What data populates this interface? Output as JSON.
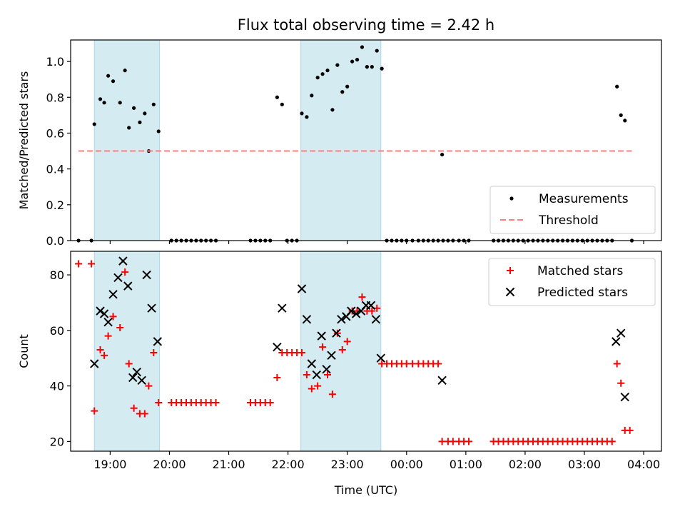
{
  "figure": {
    "title": "Flux total observing time = 2.42 h"
  },
  "chart_data": [
    {
      "type": "scatter",
      "panel": "top",
      "title": "Flux total observing time = 2.42 h",
      "xlabel": "",
      "ylabel": "Matched/Predicted stars",
      "x_ticks": [
        "19:00",
        "20:00",
        "21:00",
        "22:00",
        "23:00",
        "00:00",
        "01:00",
        "02:00",
        "03:00",
        "04:00"
      ],
      "x_tick_labels_visible": false,
      "xlim": [
        "18:20",
        "04:18"
      ],
      "ylim": [
        0.0,
        1.12
      ],
      "y_ticks": [
        0.0,
        0.2,
        0.4,
        0.6,
        0.8,
        1.0
      ],
      "y_tick_labels": [
        "0.0",
        "0.2",
        "0.4",
        "0.6",
        "0.8",
        "1.0"
      ],
      "legend_position": "lower right",
      "highlight_spans": [
        [
          "18:44",
          "19:50"
        ],
        [
          "22:13",
          "23:34"
        ]
      ],
      "highlight_color": "#d3ebf1",
      "series": [
        {
          "name": "Measurements",
          "kind": "points",
          "color": "#000000",
          "points": [
            [
              "18:28",
              0.0
            ],
            [
              "18:41",
              0.0
            ],
            [
              "18:44",
              0.65
            ],
            [
              "18:50",
              0.79
            ],
            [
              "18:54",
              0.77
            ],
            [
              "18:58",
              0.92
            ],
            [
              "19:03",
              0.89
            ],
            [
              "19:10",
              0.77
            ],
            [
              "19:15",
              0.95
            ],
            [
              "19:19",
              0.63
            ],
            [
              "19:24",
              0.74
            ],
            [
              "19:30",
              0.66
            ],
            [
              "19:35",
              0.71
            ],
            [
              "19:39",
              0.5
            ],
            [
              "19:44",
              0.76
            ],
            [
              "19:49",
              0.61
            ],
            [
              "20:02",
              0.0
            ],
            [
              "20:07",
              0.0
            ],
            [
              "20:12",
              0.0
            ],
            [
              "20:17",
              0.0
            ],
            [
              "20:22",
              0.0
            ],
            [
              "20:27",
              0.0
            ],
            [
              "20:32",
              0.0
            ],
            [
              "20:37",
              0.0
            ],
            [
              "20:42",
              0.0
            ],
            [
              "20:47",
              0.0
            ],
            [
              "21:22",
              0.0
            ],
            [
              "21:27",
              0.0
            ],
            [
              "21:32",
              0.0
            ],
            [
              "21:37",
              0.0
            ],
            [
              "21:42",
              0.0
            ],
            [
              "21:49",
              0.8
            ],
            [
              "21:54",
              0.76
            ],
            [
              "21:59",
              0.0
            ],
            [
              "22:04",
              0.0
            ],
            [
              "22:09",
              0.0
            ],
            [
              "22:14",
              0.71
            ],
            [
              "22:19",
              0.69
            ],
            [
              "22:24",
              0.81
            ],
            [
              "22:30",
              0.91
            ],
            [
              "22:35",
              0.93
            ],
            [
              "22:40",
              0.95
            ],
            [
              "22:45",
              0.73
            ],
            [
              "22:50",
              0.98
            ],
            [
              "22:55",
              0.83
            ],
            [
              "23:00",
              0.86
            ],
            [
              "23:05",
              1.0
            ],
            [
              "23:10",
              1.01
            ],
            [
              "23:15",
              1.08
            ],
            [
              "23:20",
              0.97
            ],
            [
              "23:25",
              0.97
            ],
            [
              "23:30",
              1.06
            ],
            [
              "23:35",
              0.96
            ],
            [
              "23:40",
              0.0
            ],
            [
              "23:45",
              0.0
            ],
            [
              "23:50",
              0.0
            ],
            [
              "23:55",
              0.0
            ],
            [
              "00:00",
              0.0
            ],
            [
              "00:06",
              0.0
            ],
            [
              "00:12",
              0.0
            ],
            [
              "00:17",
              0.0
            ],
            [
              "00:22",
              0.0
            ],
            [
              "00:27",
              0.0
            ],
            [
              "00:32",
              0.0
            ],
            [
              "00:37",
              0.0
            ],
            [
              "00:42",
              0.0
            ],
            [
              "00:47",
              0.0
            ],
            [
              "00:53",
              0.0
            ],
            [
              "00:58",
              0.0
            ],
            [
              "01:03",
              0.0
            ],
            [
              "00:36",
              0.48
            ],
            [
              "01:28",
              0.0
            ],
            [
              "01:33",
              0.0
            ],
            [
              "01:38",
              0.0
            ],
            [
              "01:43",
              0.0
            ],
            [
              "01:48",
              0.0
            ],
            [
              "01:53",
              0.0
            ],
            [
              "01:58",
              0.0
            ],
            [
              "02:03",
              0.0
            ],
            [
              "02:08",
              0.0
            ],
            [
              "02:13",
              0.0
            ],
            [
              "02:18",
              0.0
            ],
            [
              "02:23",
              0.0
            ],
            [
              "02:28",
              0.0
            ],
            [
              "02:33",
              0.0
            ],
            [
              "02:38",
              0.0
            ],
            [
              "02:43",
              0.0
            ],
            [
              "02:48",
              0.0
            ],
            [
              "02:53",
              0.0
            ],
            [
              "02:58",
              0.0
            ],
            [
              "03:03",
              0.0
            ],
            [
              "03:08",
              0.0
            ],
            [
              "03:13",
              0.0
            ],
            [
              "03:18",
              0.0
            ],
            [
              "03:23",
              0.0
            ],
            [
              "03:28",
              0.0
            ],
            [
              "03:33",
              0.86
            ],
            [
              "03:37",
              0.7
            ],
            [
              "03:41",
              0.67
            ],
            [
              "03:48",
              0.0
            ]
          ]
        },
        {
          "name": "Threshold",
          "kind": "dashed-line",
          "color": "#ff7f7f",
          "points": [
            [
              "18:28",
              0.5
            ],
            [
              "03:48",
              0.5
            ]
          ]
        }
      ]
    },
    {
      "type": "scatter",
      "panel": "bottom",
      "xlabel": "Time (UTC)",
      "ylabel": "Count",
      "x_ticks": [
        "19:00",
        "20:00",
        "21:00",
        "22:00",
        "23:00",
        "00:00",
        "01:00",
        "02:00",
        "03:00",
        "04:00"
      ],
      "x_tick_labels": [
        "19:00",
        "20:00",
        "21:00",
        "22:00",
        "23:00",
        "00:00",
        "01:00",
        "02:00",
        "03:00",
        "04:00"
      ],
      "xlim": [
        "18:20",
        "04:18"
      ],
      "ylim": [
        16.5,
        88.5
      ],
      "y_ticks": [
        20,
        40,
        60,
        80
      ],
      "y_tick_labels": [
        "20",
        "40",
        "60",
        "80"
      ],
      "legend_position": "upper right",
      "highlight_spans": [
        [
          "18:44",
          "19:50"
        ],
        [
          "22:13",
          "23:34"
        ]
      ],
      "highlight_color": "#d3ebf1",
      "series": [
        {
          "name": "Matched stars",
          "marker": "plus",
          "color": "#ff0000",
          "points": [
            [
              "18:28",
              84
            ],
            [
              "18:41",
              84
            ],
            [
              "18:44",
              31
            ],
            [
              "18:50",
              53
            ],
            [
              "18:54",
              51
            ],
            [
              "18:58",
              58
            ],
            [
              "19:03",
              65
            ],
            [
              "19:10",
              61
            ],
            [
              "19:15",
              81
            ],
            [
              "19:19",
              48
            ],
            [
              "19:24",
              32
            ],
            [
              "19:30",
              30
            ],
            [
              "19:35",
              30
            ],
            [
              "19:39",
              40
            ],
            [
              "19:44",
              52
            ],
            [
              "19:49",
              34
            ],
            [
              "20:02",
              34
            ],
            [
              "20:07",
              34
            ],
            [
              "20:12",
              34
            ],
            [
              "20:17",
              34
            ],
            [
              "20:22",
              34
            ],
            [
              "20:27",
              34
            ],
            [
              "20:32",
              34
            ],
            [
              "20:37",
              34
            ],
            [
              "20:42",
              34
            ],
            [
              "20:47",
              34
            ],
            [
              "21:22",
              34
            ],
            [
              "21:27",
              34
            ],
            [
              "21:32",
              34
            ],
            [
              "21:37",
              34
            ],
            [
              "21:42",
              34
            ],
            [
              "21:49",
              43
            ],
            [
              "21:54",
              52
            ],
            [
              "21:59",
              52
            ],
            [
              "22:04",
              52
            ],
            [
              "22:09",
              52
            ],
            [
              "22:14",
              52
            ],
            [
              "22:19",
              44
            ],
            [
              "22:24",
              39
            ],
            [
              "22:30",
              40
            ],
            [
              "22:35",
              54
            ],
            [
              "22:40",
              44
            ],
            [
              "22:45",
              37
            ],
            [
              "22:50",
              59
            ],
            [
              "22:55",
              53
            ],
            [
              "23:00",
              56
            ],
            [
              "23:05",
              67
            ],
            [
              "23:10",
              67
            ],
            [
              "23:15",
              72
            ],
            [
              "23:20",
              67
            ],
            [
              "23:25",
              67
            ],
            [
              "23:30",
              68
            ],
            [
              "23:35",
              48
            ],
            [
              "23:40",
              48
            ],
            [
              "23:45",
              48
            ],
            [
              "23:50",
              48
            ],
            [
              "23:55",
              48
            ],
            [
              "00:00",
              48
            ],
            [
              "00:06",
              48
            ],
            [
              "00:12",
              48
            ],
            [
              "00:17",
              48
            ],
            [
              "00:22",
              48
            ],
            [
              "00:27",
              48
            ],
            [
              "00:32",
              48
            ],
            [
              "00:36",
              20
            ],
            [
              "00:42",
              20
            ],
            [
              "00:47",
              20
            ],
            [
              "00:53",
              20
            ],
            [
              "00:58",
              20
            ],
            [
              "01:03",
              20
            ],
            [
              "01:28",
              20
            ],
            [
              "01:33",
              20
            ],
            [
              "01:38",
              20
            ],
            [
              "01:43",
              20
            ],
            [
              "01:48",
              20
            ],
            [
              "01:53",
              20
            ],
            [
              "01:58",
              20
            ],
            [
              "02:03",
              20
            ],
            [
              "02:08",
              20
            ],
            [
              "02:13",
              20
            ],
            [
              "02:18",
              20
            ],
            [
              "02:23",
              20
            ],
            [
              "02:28",
              20
            ],
            [
              "02:33",
              20
            ],
            [
              "02:38",
              20
            ],
            [
              "02:43",
              20
            ],
            [
              "02:48",
              20
            ],
            [
              "02:53",
              20
            ],
            [
              "02:58",
              20
            ],
            [
              "03:03",
              20
            ],
            [
              "03:08",
              20
            ],
            [
              "03:13",
              20
            ],
            [
              "03:18",
              20
            ],
            [
              "03:23",
              20
            ],
            [
              "03:28",
              20
            ],
            [
              "03:33",
              48
            ],
            [
              "03:37",
              41
            ],
            [
              "03:41",
              24
            ],
            [
              "03:46",
              24
            ]
          ]
        },
        {
          "name": "Predicted stars",
          "marker": "x",
          "color": "#000000",
          "points": [
            [
              "18:44",
              48
            ],
            [
              "18:50",
              67
            ],
            [
              "18:54",
              66
            ],
            [
              "18:58",
              63
            ],
            [
              "19:03",
              73
            ],
            [
              "19:08",
              79
            ],
            [
              "19:13",
              85
            ],
            [
              "19:18",
              76
            ],
            [
              "19:23",
              43
            ],
            [
              "19:27",
              45
            ],
            [
              "19:32",
              42
            ],
            [
              "19:37",
              80
            ],
            [
              "19:42",
              68
            ],
            [
              "19:48",
              56
            ],
            [
              "21:49",
              54
            ],
            [
              "21:54",
              68
            ],
            [
              "22:14",
              75
            ],
            [
              "22:19",
              64
            ],
            [
              "22:24",
              48
            ],
            [
              "22:29",
              44
            ],
            [
              "22:34",
              58
            ],
            [
              "22:39",
              46
            ],
            [
              "22:44",
              51
            ],
            [
              "22:49",
              59
            ],
            [
              "22:54",
              64
            ],
            [
              "22:59",
              65
            ],
            [
              "23:04",
              67
            ],
            [
              "23:09",
              66
            ],
            [
              "23:14",
              67
            ],
            [
              "23:19",
              69
            ],
            [
              "23:24",
              69
            ],
            [
              "23:29",
              64
            ],
            [
              "23:34",
              50
            ],
            [
              "00:36",
              42
            ],
            [
              "03:32",
              56
            ],
            [
              "03:37",
              59
            ],
            [
              "03:41",
              36
            ]
          ]
        }
      ]
    }
  ]
}
